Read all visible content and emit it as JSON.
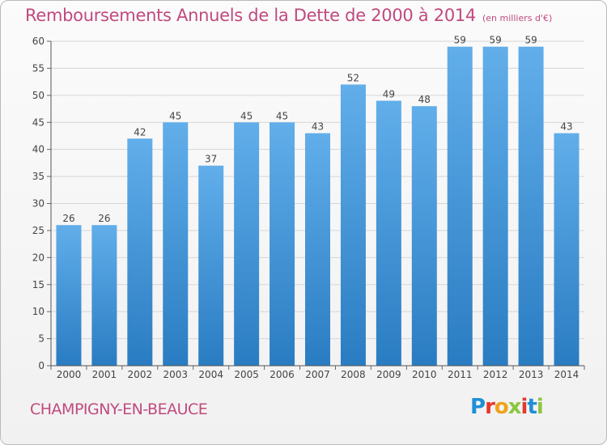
{
  "header": {
    "title": "Remboursements Annuels de la Dette de 2000 à 2014",
    "unit_note": "(en milliers d'€)"
  },
  "footer": {
    "commune": "CHAMPIGNY-EN-BEAUCE",
    "logo_letters": [
      "P",
      "r",
      "o",
      "x",
      "i",
      "t",
      "i"
    ],
    "logo_colors": [
      "#1e8fd6",
      "#e5382b",
      "#f0a21a",
      "#8cc63f",
      "#e5382b",
      "#1e8fd6",
      "#8cc63f"
    ]
  },
  "chart_data": {
    "type": "bar",
    "title": "Remboursements Annuels de la Dette de 2000 à 2014",
    "xlabel": "",
    "ylabel": "",
    "categories": [
      "2000",
      "2001",
      "2002",
      "2003",
      "2004",
      "2005",
      "2006",
      "2007",
      "2008",
      "2009",
      "2010",
      "2011",
      "2012",
      "2013",
      "2014"
    ],
    "values": [
      26,
      26,
      42,
      45,
      37,
      45,
      45,
      43,
      52,
      49,
      48,
      59,
      59,
      59,
      43
    ],
    "ylim": [
      0,
      60
    ],
    "yticks": [
      "0",
      "5",
      "10",
      "15",
      "20",
      "25",
      "30",
      "35",
      "40",
      "45",
      "50",
      "55",
      "60"
    ],
    "grid": true,
    "bar_color": "#3b8fd2"
  }
}
